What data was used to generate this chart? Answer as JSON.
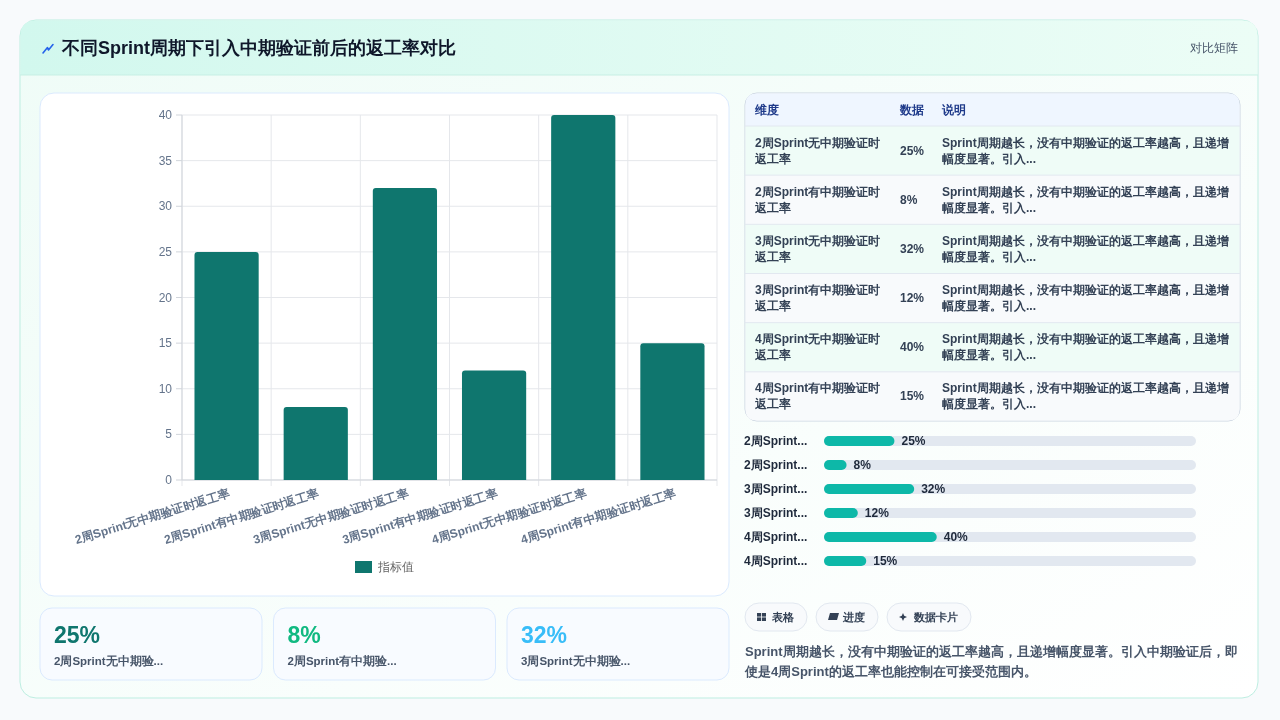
{
  "chart_data": [
    {
      "type": "other",
      "title": "不同Sprint周期下引入中期验证前后的返工率对比",
      "subtitle": "对比矩阵"
    },
    {
      "type": "bar",
      "categories": [
        "2周Sprint无中期验证时返工率",
        "2周Sprint有中期验证时返工率",
        "3周Sprint无中期验证时返工率",
        "3周Sprint有中期验证时返工率",
        "4周Sprint无中期验证时返工率",
        "4周Sprint有中期验证时返工率"
      ],
      "series": [
        {
          "name": "指标值",
          "color": "#0f766e",
          "values": [
            25,
            8,
            32,
            12,
            40,
            15
          ]
        }
      ],
      "ylim": [
        0,
        40
      ],
      "yticks": [
        0,
        5,
        10,
        15,
        20,
        25,
        30,
        35,
        40
      ],
      "grid": true,
      "legend": "bottom"
    },
    {
      "type": "other",
      "categories": [
        "2周Sprint无中期验证时返工率",
        "2周Sprint有中期验证时返工率",
        "3周Sprint无中期验证时返工率",
        "3周Sprint有中期验证时返工率",
        "4周Sprint无中期验证时返工率",
        "4周Sprint有中期验证时返工率"
      ],
      "value_labels": [
        "25%",
        "8%",
        "32%",
        "12%",
        "40%",
        "15%"
      ],
      "annotations": [
        "维度",
        "数据",
        "说明",
        "Sprint周期越长，没有中期验证的返工率越高，且递增幅度显著。引入...",
        "Sprint周期越长，没有中期验证的返工率越高，且递增幅度显著。引入...",
        "Sprint周期越长，没有中期验证的返工率越高，且递增幅度显著。引入...",
        "Sprint周期越长，没有中期验证的返工率越高，且递增幅度显著。引入...",
        "Sprint周期越长，没有中期验证的返工率越高，且递增幅度显著。引入...",
        "Sprint周期越长，没有中期验证的返工率越高，且递增幅度显著。引入..."
      ]
    },
    {
      "type": "bar",
      "orientation": "horizontal",
      "categories": [
        "2周Sprint...",
        "2周Sprint...",
        "3周Sprint...",
        "3周Sprint...",
        "4周Sprint...",
        "4周Sprint..."
      ],
      "values": [
        25,
        8,
        32,
        12,
        40,
        15
      ],
      "value_labels": [
        "25%",
        "8%",
        "32%",
        "12%",
        "40%",
        "15%"
      ],
      "color": "#0db8a8",
      "tick_labels": "y"
    },
    {
      "type": "other",
      "categories": [
        "2周Sprint无中期验...",
        "2周Sprint有中期验...",
        "3周Sprint无中期验..."
      ],
      "value_labels": [
        "25%",
        "8%",
        "32%"
      ]
    },
    {
      "type": "other",
      "categories": [
        "表格",
        "进度",
        "数据卡片"
      ],
      "annotations": [
        "Sprint周期越长，没有中期验证的返工率越高，且递增幅度显著。引入中期验证后，即使是4周Sprint的返工率也能控制在可接受范围内。"
      ]
    }
  ]
}
